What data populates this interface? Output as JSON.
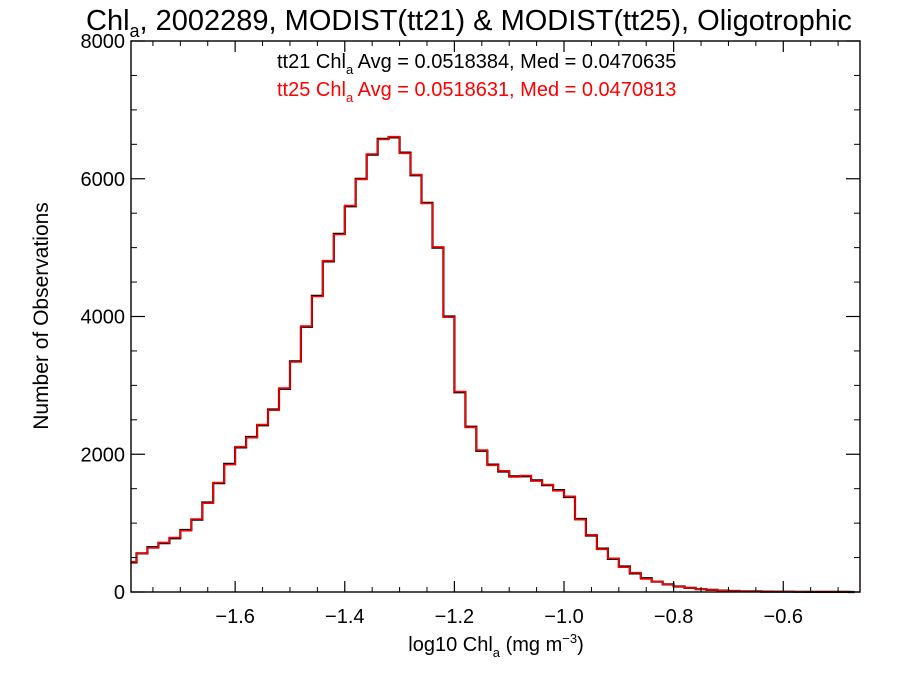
{
  "chart_data": {
    "type": "line",
    "title": {
      "main": "Chl",
      "sub": "a",
      "rest": ", 2002289, MODIST(tt21) & MODIST(tt25), Oligotrophic"
    },
    "xlabel": {
      "pre": "log10 Chl",
      "sub": "a",
      "mid": " (mg m",
      "sup": "−3",
      "post": ")"
    },
    "ylabel": "Number of Observations",
    "xlim": [
      -1.79,
      -0.46
    ],
    "ylim": [
      0,
      8000
    ],
    "xticks": [
      -1.6,
      -1.4,
      -1.2,
      -1.0,
      -0.8,
      -0.6
    ],
    "xtick_labels": [
      "−1.6",
      "−1.4",
      "−1.2",
      "−1.0",
      "−0.8",
      "−0.6"
    ],
    "yticks": [
      0,
      2000,
      4000,
      6000,
      8000
    ],
    "ytick_labels": [
      "0",
      "2000",
      "4000",
      "6000",
      "8000"
    ],
    "colors": {
      "tt21": "#000000",
      "tt25": "#ff0000"
    },
    "annotations": [
      {
        "pre": "tt21 Chl",
        "sub": "a",
        "post": " Avg = 0.0518384, Med = 0.0470635",
        "color": "#000000"
      },
      {
        "pre": "tt25 Chl",
        "sub": "a",
        "post": " Avg = 0.0518631, Med = 0.0470813",
        "color": "#ff0000"
      }
    ],
    "series": [
      {
        "color": "#000000",
        "x": [
          -1.79,
          -1.77,
          -1.75,
          -1.73,
          -1.71,
          -1.69,
          -1.67,
          -1.65,
          -1.63,
          -1.61,
          -1.59,
          -1.57,
          -1.55,
          -1.53,
          -1.51,
          -1.49,
          -1.47,
          -1.45,
          -1.43,
          -1.41,
          -1.39,
          -1.37,
          -1.35,
          -1.33,
          -1.31,
          -1.29,
          -1.27,
          -1.25,
          -1.23,
          -1.21,
          -1.19,
          -1.17,
          -1.15,
          -1.13,
          -1.11,
          -1.09,
          -1.07,
          -1.05,
          -1.03,
          -1.01,
          -0.99,
          -0.97,
          -0.95,
          -0.93,
          -0.91,
          -0.89,
          -0.87,
          -0.85,
          -0.83,
          -0.81,
          -0.79,
          -0.77,
          -0.75,
          -0.73,
          -0.71,
          -0.69,
          -0.67,
          -0.65,
          -0.63,
          -0.61,
          -0.59,
          -0.57,
          -0.55,
          -0.53,
          -0.51,
          -0.49,
          -0.47
        ],
        "y": [
          430,
          560,
          650,
          710,
          780,
          900,
          1050,
          1300,
          1580,
          1860,
          2100,
          2250,
          2420,
          2650,
          2950,
          3350,
          3850,
          4300,
          4800,
          5200,
          5600,
          6000,
          6350,
          6580,
          6600,
          6380,
          6050,
          5650,
          5000,
          4000,
          2900,
          2400,
          2050,
          1850,
          1750,
          1680,
          1680,
          1620,
          1550,
          1480,
          1380,
          1060,
          820,
          630,
          480,
          370,
          270,
          200,
          150,
          110,
          80,
          60,
          40,
          30,
          20,
          15,
          10,
          8,
          6,
          5,
          4,
          3,
          2,
          2,
          1,
          1,
          0
        ]
      },
      {
        "color": "#ff0000",
        "x": [
          -1.79,
          -1.77,
          -1.75,
          -1.73,
          -1.71,
          -1.69,
          -1.67,
          -1.65,
          -1.63,
          -1.61,
          -1.59,
          -1.57,
          -1.55,
          -1.53,
          -1.51,
          -1.49,
          -1.47,
          -1.45,
          -1.43,
          -1.41,
          -1.39,
          -1.37,
          -1.35,
          -1.33,
          -1.31,
          -1.29,
          -1.27,
          -1.25,
          -1.23,
          -1.21,
          -1.19,
          -1.17,
          -1.15,
          -1.13,
          -1.11,
          -1.09,
          -1.07,
          -1.05,
          -1.03,
          -1.01,
          -0.99,
          -0.97,
          -0.95,
          -0.93,
          -0.91,
          -0.89,
          -0.87,
          -0.85,
          -0.83,
          -0.81,
          -0.79,
          -0.77,
          -0.75,
          -0.73,
          -0.71,
          -0.69,
          -0.67,
          -0.65,
          -0.63,
          -0.61,
          -0.59,
          -0.57,
          -0.55,
          -0.53,
          -0.51,
          -0.49,
          -0.47
        ],
        "y": [
          440,
          560,
          640,
          720,
          790,
          890,
          1060,
          1290,
          1590,
          1850,
          2110,
          2240,
          2430,
          2640,
          2960,
          3340,
          3860,
          4290,
          4810,
          5190,
          5610,
          5990,
          6360,
          6570,
          6610,
          6370,
          6060,
          5640,
          5010,
          3990,
          2910,
          2390,
          2060,
          1840,
          1760,
          1670,
          1690,
          1610,
          1560,
          1470,
          1390,
          1050,
          830,
          620,
          490,
          360,
          280,
          190,
          150,
          110,
          80,
          60,
          40,
          30,
          20,
          15,
          10,
          8,
          6,
          5,
          4,
          3,
          2,
          2,
          1,
          1,
          0
        ]
      }
    ]
  }
}
